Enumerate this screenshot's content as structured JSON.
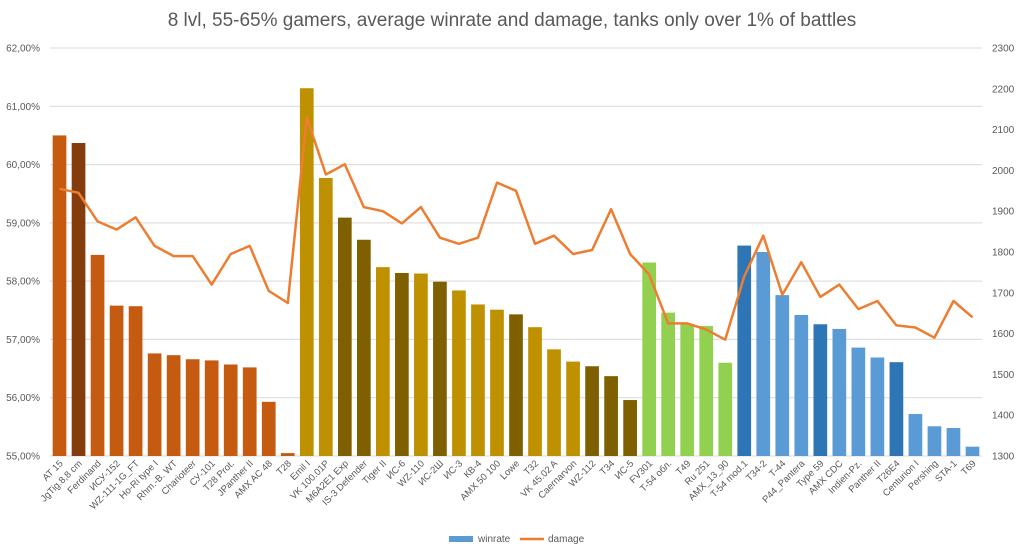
{
  "chart_data": {
    "type": "bar+line",
    "title": "8 lvl, 55-65% gamers, average winrate and damage, tanks only over 1% of battles",
    "xlabel": "",
    "ylabel": "",
    "y_left": {
      "min": 55,
      "max": 62,
      "step": 1,
      "tick_labels": [
        "55,00%",
        "56,00%",
        "57,00%",
        "58,00%",
        "59,00%",
        "60,00%",
        "61,00%",
        "62,00%"
      ]
    },
    "y_right": {
      "min": 1300,
      "max": 2300,
      "step": 100,
      "tick_labels": [
        "1300",
        "1400",
        "1500",
        "1600",
        "1700",
        "1800",
        "1900",
        "2000",
        "2100",
        "2200",
        "2300"
      ]
    },
    "grid": true,
    "legend_position": "bottom",
    "legend": [
      {
        "name": "winrate",
        "type": "bar",
        "color": "#5b9bd5"
      },
      {
        "name": "damage",
        "type": "line",
        "color": "#ed7d31"
      }
    ],
    "categories": [
      "AT 15",
      "JgTig.8,8 cm",
      "Ferdinand",
      "ИСУ-152",
      "WZ-111-1G_FT",
      "Ho-Ri type I",
      "Rhm.-B. WT",
      "Charioteer",
      "СУ-101",
      "T28 Prot.",
      "JPanther II",
      "AMX AC 48",
      "T28",
      "Emil I",
      "VK 100.01P",
      "M6A2E1 Exp",
      "IS-3 Defender",
      "Tiger II",
      "ИС-6",
      "WZ-110",
      "ИС-2Ш",
      "ИС-3",
      "КВ-4",
      "AMX 50 100",
      "Lowe",
      "T32",
      "VK 45.02 A",
      "Caernarvon",
      "WZ-112",
      "T34",
      "ИС-5",
      "FV301",
      "T-54 обл.",
      "T49",
      "Ru 251",
      "AMX_13_90",
      "T-54 mod.1",
      "T34-2",
      "T-44",
      "P44_Pantera",
      "Type 59",
      "AMX CDC",
      "Indien-Pz.",
      "Panther II",
      "T26E4",
      "Centurion I",
      "Pershing",
      "STA-1",
      "T69"
    ],
    "series": [
      {
        "name": "winrate",
        "type": "bar",
        "axis": "left",
        "unit": "%",
        "values": [
          60.5,
          60.37,
          58.45,
          57.58,
          57.57,
          56.76,
          56.73,
          56.66,
          56.64,
          56.57,
          56.52,
          55.93,
          55.05,
          61.31,
          59.77,
          59.09,
          58.71,
          58.24,
          58.14,
          58.13,
          57.99,
          57.84,
          57.6,
          57.51,
          57.43,
          57.21,
          56.83,
          56.62,
          56.54,
          56.37,
          55.96,
          58.32,
          57.46,
          57.26,
          57.23,
          56.6,
          58.61,
          58.5,
          57.76,
          57.42,
          57.26,
          57.18,
          56.86,
          56.69,
          56.61,
          55.72,
          55.51,
          55.48,
          55.16
        ],
        "colors": [
          "#c55a11",
          "#843c0c",
          "#c55a11",
          "#c55a11",
          "#c55a11",
          "#c55a11",
          "#c55a11",
          "#c55a11",
          "#c55a11",
          "#c55a11",
          "#c55a11",
          "#c55a11",
          "#c55a11",
          "#bf9000",
          "#bf9000",
          "#7f6000",
          "#7f6000",
          "#bf9000",
          "#7f6000",
          "#bf9000",
          "#7f6000",
          "#bf9000",
          "#bf9000",
          "#bf9000",
          "#7f6000",
          "#bf9000",
          "#bf9000",
          "#bf9000",
          "#7f6000",
          "#7f6000",
          "#7f6000",
          "#92d050",
          "#92d050",
          "#92d050",
          "#92d050",
          "#92d050",
          "#2e75b6",
          "#5b9bd5",
          "#5b9bd5",
          "#5b9bd5",
          "#2e75b6",
          "#5b9bd5",
          "#5b9bd5",
          "#5b9bd5",
          "#2e75b6",
          "#5b9bd5",
          "#5b9bd5",
          "#5b9bd5",
          "#5b9bd5"
        ]
      },
      {
        "name": "damage",
        "type": "line",
        "axis": "right",
        "color": "#ed7d31",
        "values": [
          1955,
          1945,
          1875,
          1855,
          1885,
          1815,
          1790,
          1790,
          1720,
          1795,
          1815,
          1705,
          1675,
          2130,
          1990,
          2015,
          1910,
          1900,
          1870,
          1910,
          1835,
          1820,
          1835,
          1970,
          1950,
          1820,
          1840,
          1795,
          1805,
          1905,
          1795,
          1745,
          1625,
          1625,
          1610,
          1585,
          1740,
          1840,
          1695,
          1775,
          1690,
          1720,
          1660,
          1680,
          1620,
          1615,
          1590,
          1680,
          1640
        ]
      }
    ]
  }
}
